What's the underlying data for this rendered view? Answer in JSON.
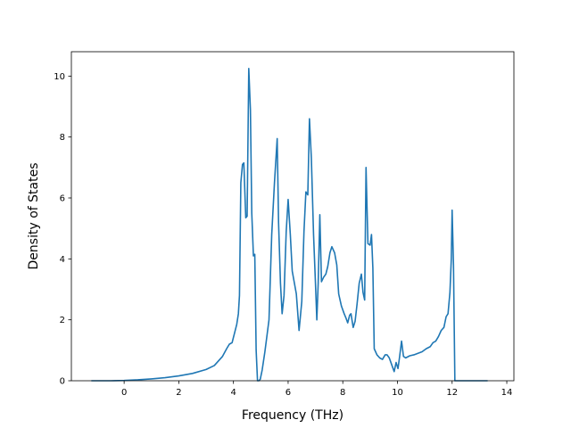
{
  "chart_data": {
    "type": "line",
    "title": "",
    "xlabel": "Frequency (THz)",
    "ylabel": "Density of States",
    "xlim": [
      -1.93,
      14.26
    ],
    "ylim": [
      0,
      10.8
    ],
    "xticks": [
      0,
      2,
      4,
      6,
      8,
      10,
      12,
      14
    ],
    "yticks": [
      0,
      2,
      4,
      6,
      8,
      10
    ],
    "grid": false,
    "legend": "none",
    "line_color": "#1f77b4",
    "series": [
      {
        "x": [
          -1.2,
          -0.5,
          0.0,
          0.5,
          1.0,
          1.5,
          2.0,
          2.5,
          3.0,
          3.3,
          3.6,
          3.75,
          3.85,
          3.95,
          4.05,
          4.12,
          4.18,
          4.22,
          4.27,
          4.33,
          4.38,
          4.45,
          4.5,
          4.56,
          4.62,
          4.67,
          4.73,
          4.78,
          4.83,
          4.88,
          4.93,
          4.98,
          5.05,
          5.15,
          5.3,
          5.4,
          5.5,
          5.6,
          5.65,
          5.72,
          5.78,
          5.85,
          5.93,
          6.0,
          6.08,
          6.15,
          6.23,
          6.3,
          6.4,
          6.5,
          6.58,
          6.65,
          6.72,
          6.78,
          6.85,
          6.93,
          7.0,
          7.05,
          7.1,
          7.16,
          7.22,
          7.3,
          7.38,
          7.45,
          7.53,
          7.6,
          7.7,
          7.78,
          7.85,
          7.95,
          8.05,
          8.12,
          8.18,
          8.25,
          8.3,
          8.38,
          8.45,
          8.52,
          8.6,
          8.68,
          8.74,
          8.8,
          8.85,
          8.92,
          9.0,
          9.05,
          9.1,
          9.15,
          9.25,
          9.35,
          9.45,
          9.55,
          9.62,
          9.7,
          9.8,
          9.88,
          9.95,
          10.02,
          10.08,
          10.15,
          10.22,
          10.3,
          10.45,
          10.6,
          10.75,
          10.9,
          11.05,
          11.2,
          11.3,
          11.4,
          11.5,
          11.6,
          11.7,
          11.78,
          11.85,
          11.92,
          11.97,
          12.0,
          12.05,
          12.1,
          12.2,
          12.5,
          13.0,
          13.3
        ],
        "y": [
          0.0,
          0.0,
          0.01,
          0.03,
          0.06,
          0.1,
          0.16,
          0.24,
          0.37,
          0.5,
          0.8,
          1.05,
          1.2,
          1.25,
          1.6,
          1.85,
          2.2,
          2.8,
          6.5,
          7.1,
          7.15,
          5.35,
          5.4,
          10.25,
          8.9,
          5.5,
          4.1,
          4.15,
          1.0,
          0.0,
          0.0,
          0.05,
          0.35,
          0.95,
          2.0,
          4.8,
          6.5,
          7.95,
          5.2,
          3.2,
          2.2,
          2.8,
          4.9,
          5.95,
          4.8,
          3.6,
          3.2,
          2.85,
          1.65,
          2.6,
          4.9,
          6.2,
          6.1,
          8.6,
          7.3,
          4.8,
          3.2,
          2.0,
          3.2,
          5.45,
          3.25,
          3.4,
          3.5,
          3.75,
          4.2,
          4.4,
          4.2,
          3.8,
          2.85,
          2.45,
          2.2,
          2.05,
          1.9,
          2.15,
          2.2,
          1.75,
          1.95,
          2.5,
          3.2,
          3.5,
          2.9,
          2.65,
          7.0,
          4.5,
          4.45,
          4.8,
          3.7,
          1.05,
          0.85,
          0.75,
          0.7,
          0.85,
          0.85,
          0.75,
          0.5,
          0.3,
          0.6,
          0.4,
          0.8,
          1.3,
          0.8,
          0.75,
          0.82,
          0.85,
          0.9,
          0.95,
          1.05,
          1.12,
          1.25,
          1.3,
          1.45,
          1.65,
          1.75,
          2.1,
          2.2,
          2.9,
          4.0,
          5.6,
          3.8,
          0.0,
          0.0,
          0.0,
          0.0,
          0.0
        ]
      }
    ]
  }
}
